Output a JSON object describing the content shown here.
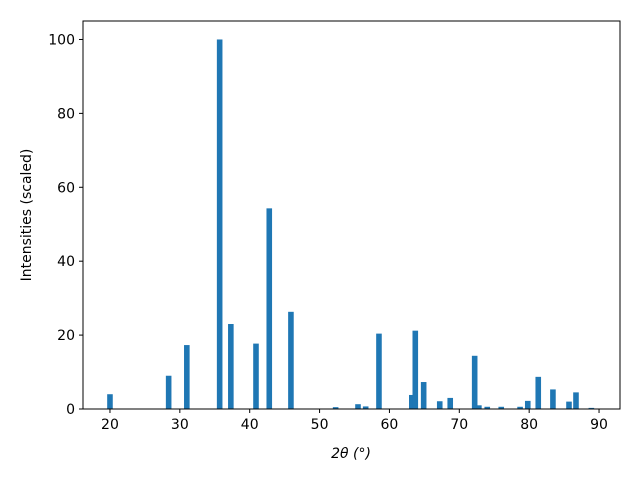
{
  "chart_data": {
    "type": "bar",
    "x_label": "2θ (°)",
    "y_label": "Intensities (scaled)",
    "x": [
      20.0,
      28.4,
      31.0,
      35.7,
      37.3,
      40.9,
      42.8,
      45.9,
      52.3,
      55.5,
      56.6,
      58.5,
      63.2,
      63.7,
      64.9,
      67.2,
      68.7,
      72.2,
      72.8,
      74.0,
      76.0,
      78.7,
      79.8,
      81.3,
      83.4,
      85.7,
      86.7,
      88.9
    ],
    "values": [
      4,
      9,
      17.3,
      100,
      23,
      17.7,
      54.3,
      26.3,
      0.5,
      1.3,
      0.7,
      20.4,
      3.8,
      21.2,
      7.3,
      2.1,
      3,
      14.4,
      1,
      0.6,
      0.6,
      0.6,
      2.2,
      8.7,
      5.3,
      2,
      4.5,
      0.3
    ],
    "bar_width": 0.8,
    "color": "#1f77b4",
    "xlim": [
      16.14,
      93.0
    ],
    "xticks": [
      20,
      30,
      40,
      50,
      60,
      70,
      80,
      90
    ],
    "ylim": [
      0,
      105
    ],
    "yticks": [
      0,
      20,
      40,
      60,
      80,
      100
    ],
    "grid": false
  }
}
